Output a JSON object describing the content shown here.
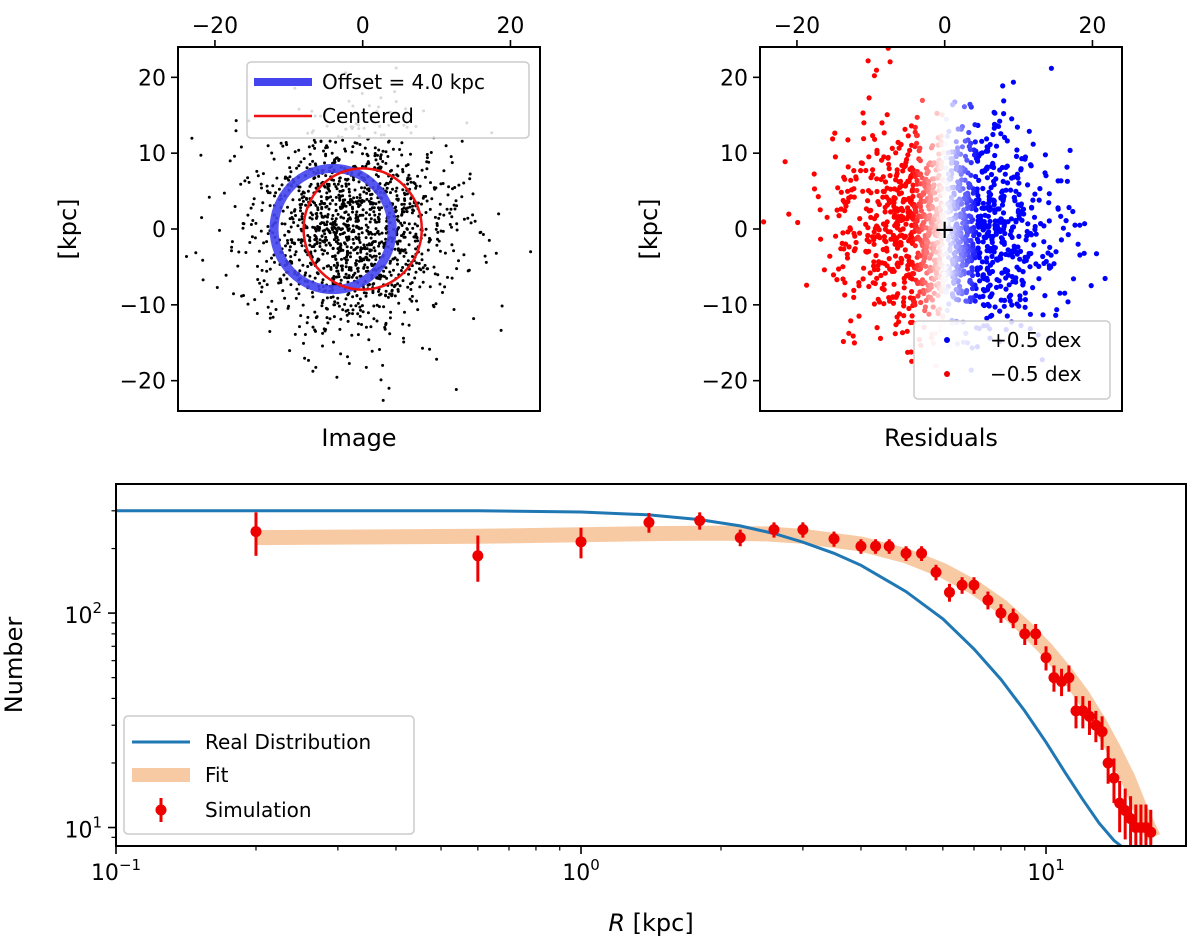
{
  "chart_data": [
    {
      "id": "image",
      "type": "scatter",
      "xlabel": "Image",
      "ylabel": "[kpc]",
      "xlim": [
        -25,
        24
      ],
      "ylim": [
        -24,
        24
      ],
      "xticks": [
        -20,
        0,
        20
      ],
      "yticks": [
        20,
        10,
        0,
        -10,
        -20
      ],
      "xtick_labels": [
        "−20",
        "0",
        "20"
      ],
      "ytick_labels": [
        "20",
        "10",
        "0",
        "−10",
        "−20"
      ],
      "xaxis_position": "top",
      "points": {
        "count": 1500,
        "center": [
          -1.5,
          0
        ],
        "spread": 7,
        "color": "#000000"
      },
      "circles": [
        {
          "name": "Offset = 4.0 kpc",
          "center": [
            -4.0,
            0
          ],
          "radius": 8.0,
          "color": "#4444ee"
        },
        {
          "name": "Centered",
          "center": [
            0,
            0
          ],
          "radius": 8.0,
          "color": "#ee1111"
        }
      ],
      "legend": [
        {
          "label": "Offset = 4.0 kpc",
          "color": "#4444ee",
          "style": "thick-line"
        },
        {
          "label": "Centered",
          "color": "#ee1111",
          "style": "line"
        }
      ],
      "legend_position": "top-right"
    },
    {
      "id": "residuals",
      "type": "scatter",
      "xlabel": "Residuals",
      "ylabel": "[kpc]",
      "xlim": [
        -25,
        24
      ],
      "ylim": [
        -24,
        24
      ],
      "xticks": [
        -20,
        0,
        20
      ],
      "yticks": [
        20,
        10,
        0,
        -10,
        -20
      ],
      "xtick_labels": [
        "−20",
        "0",
        "20"
      ],
      "ytick_labels": [
        "20",
        "10",
        "0",
        "−10",
        "−20"
      ],
      "xaxis_position": "top",
      "points": {
        "count": 1500,
        "center": [
          0,
          0
        ],
        "spread": 7,
        "color_map": "bwr_r"
      },
      "marker": {
        "label": "+",
        "position": [
          0,
          0
        ]
      },
      "legend": [
        {
          "label": "+0.5 dex",
          "color": "#0000ee",
          "style": "dot"
        },
        {
          "label": "−0.5 dex",
          "color": "#ee0000",
          "style": "dot"
        }
      ],
      "legend_position": "bottom-right"
    },
    {
      "id": "radial",
      "type": "line",
      "xscale": "log",
      "yscale": "log",
      "xlabel": "R [kpc]",
      "ylabel": "Number",
      "xlim": [
        0.1,
        20
      ],
      "ylim": [
        8.2,
        400
      ],
      "xticks": [
        0.1,
        1,
        10
      ],
      "xtick_labels": [
        {
          "base": "10",
          "exp": "−1"
        },
        {
          "base": "10",
          "exp": "0"
        },
        {
          "base": "10",
          "exp": "1"
        }
      ],
      "yticks": [
        10,
        100
      ],
      "ytick_labels": [
        {
          "base": "10",
          "exp": "1"
        },
        {
          "base": "10",
          "exp": "2"
        }
      ],
      "series": [
        {
          "name": "Real Distribution",
          "color": "#1f77b4",
          "x": [
            0.1,
            0.3,
            0.6,
            1.0,
            1.4,
            1.8,
            2.2,
            2.6,
            3.0,
            3.5,
            4.0,
            5.0,
            6.0,
            7.0,
            8.0,
            9.0,
            10.0,
            11.0,
            12.0,
            13.0,
            14.0,
            14.5
          ],
          "y": [
            300,
            300,
            300,
            296,
            287,
            273,
            255,
            235,
            214,
            190,
            167,
            126,
            94,
            68,
            49,
            35,
            25,
            18,
            13.5,
            10.5,
            8.7,
            8.2
          ]
        },
        {
          "name": "Fit",
          "color": "#f5b886",
          "x": [
            0.2,
            0.6,
            1.0,
            1.5,
            2.0,
            2.5,
            3.0,
            4.0,
            5.0,
            6.0,
            7.0,
            8.0,
            9.0,
            10.0,
            11.0,
            12.0,
            13.0,
            14.0,
            15.0,
            16.0,
            17.0
          ],
          "y": [
            225,
            228,
            232,
            235,
            236,
            234,
            228,
            210,
            185,
            158,
            132,
            108,
            86,
            68,
            53,
            41,
            31,
            23,
            17,
            12,
            9
          ]
        },
        {
          "name": "Simulation",
          "color": "#ee0000",
          "x": [
            0.2,
            0.6,
            1.0,
            1.4,
            1.8,
            2.2,
            2.6,
            3.0,
            3.5,
            4.0,
            4.3,
            4.6,
            5.0,
            5.4,
            5.8,
            6.2,
            6.6,
            7.0,
            7.5,
            8.0,
            8.5,
            9.0,
            9.5,
            10.0,
            10.4,
            10.8,
            11.2,
            11.6,
            12.0,
            12.4,
            12.8,
            13.2,
            13.6,
            14.0,
            14.4,
            14.8,
            15.2,
            15.6,
            16.0,
            16.4,
            16.8
          ],
          "y": [
            240,
            185,
            215,
            265,
            270,
            225,
            245,
            245,
            222,
            205,
            205,
            205,
            190,
            190,
            155,
            125,
            135,
            135,
            115,
            100,
            95,
            80,
            80,
            62,
            50,
            48,
            50,
            35,
            35,
            33,
            30,
            28,
            20,
            17,
            13,
            12,
            11,
            10,
            10,
            10,
            9.5
          ],
          "yerr_lower": [
            55,
            45,
            35,
            28,
            25,
            20,
            20,
            20,
            18,
            16,
            16,
            16,
            15,
            15,
            13,
            12,
            12,
            12,
            11,
            10,
            10,
            9,
            9,
            8,
            7,
            7,
            7,
            6,
            6,
            6,
            5,
            5,
            4,
            4,
            3.5,
            3.2,
            3,
            2.8,
            2.8,
            2.8,
            2.6
          ],
          "yerr_upper": [
            55,
            45,
            35,
            28,
            25,
            20,
            20,
            20,
            18,
            16,
            16,
            16,
            15,
            15,
            13,
            12,
            12,
            12,
            11,
            10,
            10,
            9,
            9,
            8,
            7,
            7,
            7,
            6,
            6,
            6,
            5,
            5,
            4,
            4,
            3.5,
            3.2,
            3,
            2.8,
            2.8,
            2.8,
            2.6
          ]
        }
      ],
      "legend": [
        {
          "label": "Real Distribution",
          "color": "#1f77b4",
          "style": "line"
        },
        {
          "label": "Fit",
          "color": "#f5b886",
          "style": "band"
        },
        {
          "label": "Simulation",
          "color": "#ee0000",
          "style": "errorbar"
        }
      ],
      "legend_position": "bottom-left"
    }
  ]
}
